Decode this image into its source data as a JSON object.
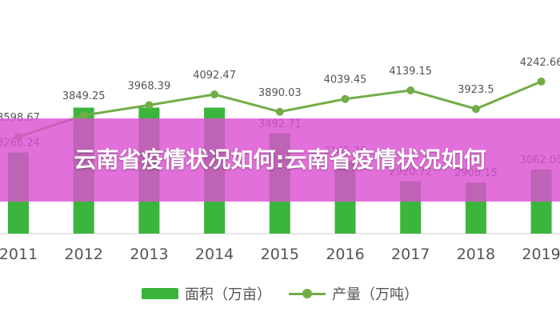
{
  "banner": {
    "title": "云南省疫情状况如何:云南省疫情状况如何"
  },
  "colors": {
    "bar": "#3bb53b",
    "line": "#71ad47",
    "axis": "#cccccc",
    "label": "#555555",
    "banner": "#dc50d2"
  },
  "chart_data": {
    "type": "bar+line",
    "categories": [
      "2011",
      "2012",
      "2013",
      "2014",
      "2015",
      "2016",
      "2017",
      "2018",
      "2019"
    ],
    "series": [
      {
        "name": "面积（万亩）",
        "type": "bar",
        "values": [
          3266.24,
          null,
          null,
          null,
          3492.71,
          3165.75,
          2920.72,
          2908.15,
          3062.05
        ],
        "labels": [
          "3266.24",
          "",
          "",
          "",
          "3492.71",
          "3165.75",
          "2920.72",
          "2908.15",
          "3062.05"
        ]
      },
      {
        "name": "产量（万吨）",
        "type": "line",
        "values": [
          3598.67,
          3849.25,
          3968.39,
          4092.47,
          3890.03,
          4039.45,
          4139.15,
          3923.5,
          4242.66
        ],
        "labels": [
          "3598.67",
          "3849.25",
          "3968.39",
          "4092.47",
          "3890.03",
          "4039.45",
          "4139.15",
          "3923.5",
          "4242.66"
        ]
      }
    ],
    "legend": [
      "面积（万亩）",
      "产量（万吨）"
    ],
    "legend_position": "bottom",
    "grid": false
  }
}
